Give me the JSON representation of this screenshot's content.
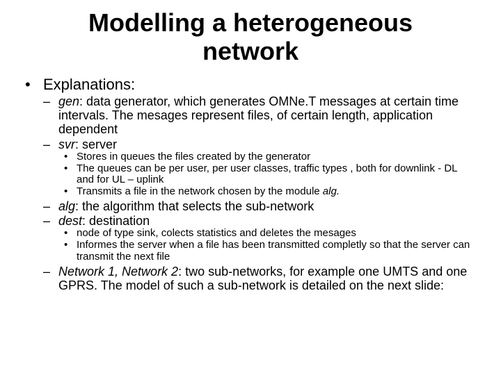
{
  "title": "Modelling a heterogeneous network",
  "l1": {
    "bullet": "•",
    "item1": "Explanations:"
  },
  "l2": {
    "bullet": "–",
    "gen": {
      "term": "gen",
      "rest": ": data generator, which generates OMNe.T messages at certain time intervals. The mesages represent files, of certain length, application dependent"
    },
    "svr": {
      "term": "svr",
      "rest": ": server"
    },
    "alg": {
      "term": "alg",
      "rest": ": the algorithm that selects the sub-network"
    },
    "dest": {
      "term": "dest",
      "rest": ": destination"
    },
    "net": {
      "term": "Network 1, Network 2",
      "rest": ": two sub-networks, for example one UMTS and one GPRS. The model of such a sub-network is detailed on the next slide:"
    }
  },
  "l3": {
    "bullet": "•",
    "svr1": "Stores in queues the files created by the generator",
    "svr2": "The queues can be per user, per user classes, traffic types , both for downlink - DL and for UL – uplink",
    "svr3_pre": "Transmits a file in the network chosen by the module ",
    "svr3_term": "alg.",
    "dest1": "node of type sink, colects statistics and deletes the mesages",
    "dest2": "Informes the server when a file has been transmitted completly so that the server can transmit the next file"
  }
}
